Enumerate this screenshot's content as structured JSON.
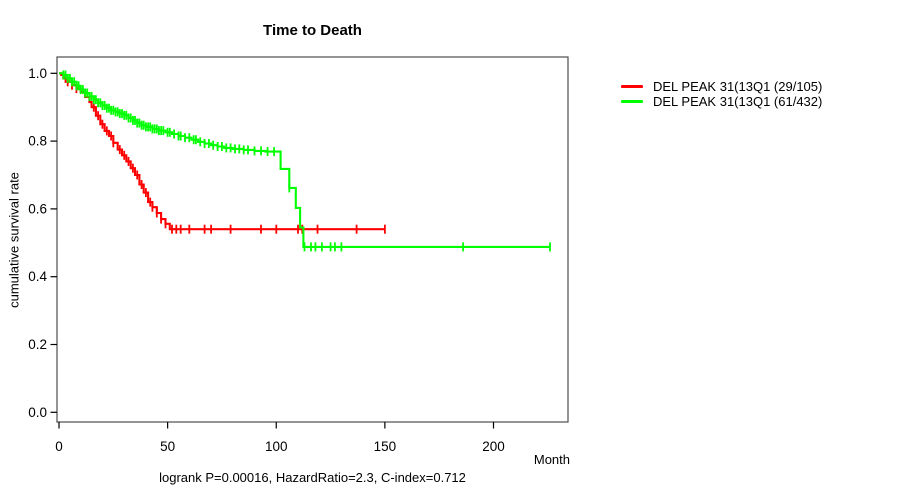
{
  "figure": {
    "title": "Time to Death",
    "ylabel": "cumulative survival rate",
    "xlabel": "Month",
    "caption": "logrank P=0.00016, HazardRatio=2.3, C-index=0.712"
  },
  "legend": [
    {
      "label": "DEL PEAK 31(13Q1 (29/105)",
      "color": "#ff0000"
    },
    {
      "label": "DEL PEAK 31(13Q1 (61/432)",
      "color": "#00ff00"
    }
  ],
  "chart_data": {
    "type": "line",
    "subtype": "kaplan-meier-step-survival",
    "title": "Time to Death",
    "xlabel": "Month",
    "ylabel": "cumulative survival rate",
    "annotation": "logrank P=0.00016, HazardRatio=2.3, C-index=0.712",
    "xlim": [
      0,
      235
    ],
    "ylim": [
      0,
      1.04
    ],
    "x_ticks": [
      0,
      50,
      100,
      150,
      200
    ],
    "y_ticks": [
      0,
      0.2,
      0.4,
      0.6,
      0.8,
      1
    ],
    "grid": false,
    "legend_position": "right-outside",
    "series": [
      {
        "name": "DEL PEAK 31(13Q1 (29/105)",
        "color": "#ff0000",
        "events": "29/105",
        "end": 150,
        "steps": [
          [
            0,
            1.0
          ],
          [
            1,
            0.995
          ],
          [
            2,
            0.985
          ],
          [
            4,
            0.975
          ],
          [
            6,
            0.965
          ],
          [
            8,
            0.955
          ],
          [
            10,
            0.945
          ],
          [
            12,
            0.93
          ],
          [
            14,
            0.915
          ],
          [
            15,
            0.9
          ],
          [
            17,
            0.875
          ],
          [
            19,
            0.85
          ],
          [
            21,
            0.83
          ],
          [
            23,
            0.815
          ],
          [
            25,
            0.795
          ],
          [
            27,
            0.775
          ],
          [
            29,
            0.758
          ],
          [
            31,
            0.74
          ],
          [
            33,
            0.72
          ],
          [
            35,
            0.7
          ],
          [
            37,
            0.672
          ],
          [
            39,
            0.648
          ],
          [
            41,
            0.62
          ],
          [
            43,
            0.605
          ],
          [
            45,
            0.588
          ],
          [
            47,
            0.57
          ],
          [
            49,
            0.556
          ],
          [
            51,
            0.54
          ]
        ],
        "censors": [
          3,
          4,
          6,
          8,
          16,
          18,
          20,
          22,
          24,
          25,
          28,
          30,
          32,
          34,
          36,
          38,
          40,
          42,
          43,
          45,
          47,
          49,
          52,
          54,
          56,
          60,
          67,
          70,
          79,
          93,
          100,
          110,
          112,
          119,
          137,
          150
        ]
      },
      {
        "name": "DEL PEAK 31(13Q1 (61/432)",
        "color": "#00ff00",
        "events": "61/432",
        "end": 226,
        "steps": [
          [
            0,
            1.0
          ],
          [
            2,
            0.995
          ],
          [
            4,
            0.985
          ],
          [
            6,
            0.975
          ],
          [
            8,
            0.963
          ],
          [
            10,
            0.952
          ],
          [
            12,
            0.942
          ],
          [
            14,
            0.932
          ],
          [
            16,
            0.922
          ],
          [
            18,
            0.913
          ],
          [
            20,
            0.905
          ],
          [
            22,
            0.897
          ],
          [
            24,
            0.891
          ],
          [
            26,
            0.886
          ],
          [
            28,
            0.881
          ],
          [
            30,
            0.876
          ],
          [
            32,
            0.868
          ],
          [
            34,
            0.861
          ],
          [
            36,
            0.853
          ],
          [
            38,
            0.847
          ],
          [
            40,
            0.842
          ],
          [
            43,
            0.836
          ],
          [
            46,
            0.831
          ],
          [
            49,
            0.826
          ],
          [
            52,
            0.821
          ],
          [
            55,
            0.815
          ],
          [
            58,
            0.81
          ],
          [
            61,
            0.804
          ],
          [
            64,
            0.798
          ],
          [
            67,
            0.793
          ],
          [
            70,
            0.788
          ],
          [
            73,
            0.784
          ],
          [
            76,
            0.78
          ],
          [
            80,
            0.777
          ],
          [
            85,
            0.774
          ],
          [
            90,
            0.771
          ],
          [
            95,
            0.769
          ],
          [
            102,
            0.718
          ],
          [
            106,
            0.662
          ],
          [
            109,
            0.603
          ],
          [
            111,
            0.545
          ],
          [
            112.5,
            0.488
          ]
        ],
        "censors": [
          2,
          3,
          4,
          5,
          6,
          7,
          8,
          9,
          10,
          11,
          12,
          13,
          14,
          15,
          16,
          17,
          18,
          19,
          20,
          21,
          22,
          23,
          24,
          25,
          26,
          27,
          28,
          29,
          30,
          31,
          32,
          33,
          34,
          35,
          36,
          37,
          38,
          39,
          40,
          41,
          42,
          43,
          44,
          45,
          46,
          47,
          48,
          50,
          51,
          53,
          55,
          56,
          58,
          60,
          62,
          63,
          65,
          67,
          69,
          71,
          73,
          75,
          77,
          79,
          81,
          83,
          85,
          87,
          90,
          93,
          96,
          99,
          106,
          113,
          116,
          118,
          121,
          125,
          127,
          130,
          186,
          226
        ]
      }
    ]
  }
}
